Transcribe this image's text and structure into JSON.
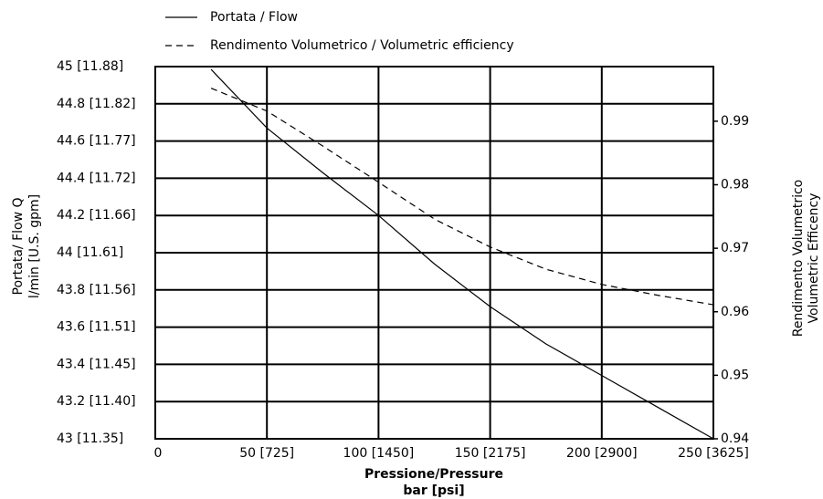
{
  "chart_data": {
    "type": "line",
    "legend": "top",
    "grid": true,
    "xlabel": [
      "Pressione/Pressure",
      "bar [psi]"
    ],
    "ylabel": [
      "Portata/ Flow Q",
      "l/min [U.S. gpm]"
    ],
    "y2label": [
      "Rendimento Volumetrico",
      "Volumetric Efficency"
    ],
    "x": [
      25,
      50,
      75,
      100,
      125,
      150,
      175,
      200,
      225,
      250
    ],
    "xlim": [
      0,
      250
    ],
    "xticks": [
      0,
      {
        "value": 50,
        "label": "50 [725]"
      },
      {
        "value": 100,
        "label": "100 [1450]"
      },
      {
        "value": 150,
        "label": "150 [2175]"
      },
      {
        "value": 200,
        "label": "200 [2900]"
      },
      {
        "value": 250,
        "label": "250 [3625]"
      }
    ],
    "ylim": [
      43,
      45
    ],
    "yticks": [
      {
        "value": 43,
        "label": "43 [11.35]"
      },
      {
        "value": 43.2,
        "label": "43.2 [11.40]"
      },
      {
        "value": 43.4,
        "label": "43.4 [11.45]"
      },
      {
        "value": 43.6,
        "label": "43.6 [11.51]"
      },
      {
        "value": 43.8,
        "label": "43.8 [11.56]"
      },
      {
        "value": 44,
        "label": "44 [11.61]"
      },
      {
        "value": 44.2,
        "label": "44.2 [11.66]"
      },
      {
        "value": 44.4,
        "label": "44.4 [11.72]"
      },
      {
        "value": 44.6,
        "label": "44.6 [11.77]"
      },
      {
        "value": 44.8,
        "label": "44.8 [11.82]"
      },
      {
        "value": 45,
        "label": "45 [11.88]"
      }
    ],
    "y2lim": [
      0.94,
      0.9986
    ],
    "y2ticks": [
      0.94,
      0.95,
      0.96,
      0.97,
      0.98,
      0.99
    ],
    "series": [
      {
        "name": "Portata / Flow",
        "color": "#000000",
        "dash": "solid",
        "values": [
          44.985,
          44.67,
          44.43,
          44.2,
          43.94,
          43.71,
          43.51,
          43.34,
          43.17,
          43.0
        ]
      },
      {
        "name": "Rendimento Volumetrico / Volumetric efficiency",
        "color": "#000000",
        "dash": "dashed",
        "axis": "y2",
        "values": [
          0.9952,
          0.9916,
          0.9861,
          0.9804,
          0.9746,
          0.9702,
          0.9667,
          0.9643,
          0.9626,
          0.9611
        ]
      }
    ]
  }
}
